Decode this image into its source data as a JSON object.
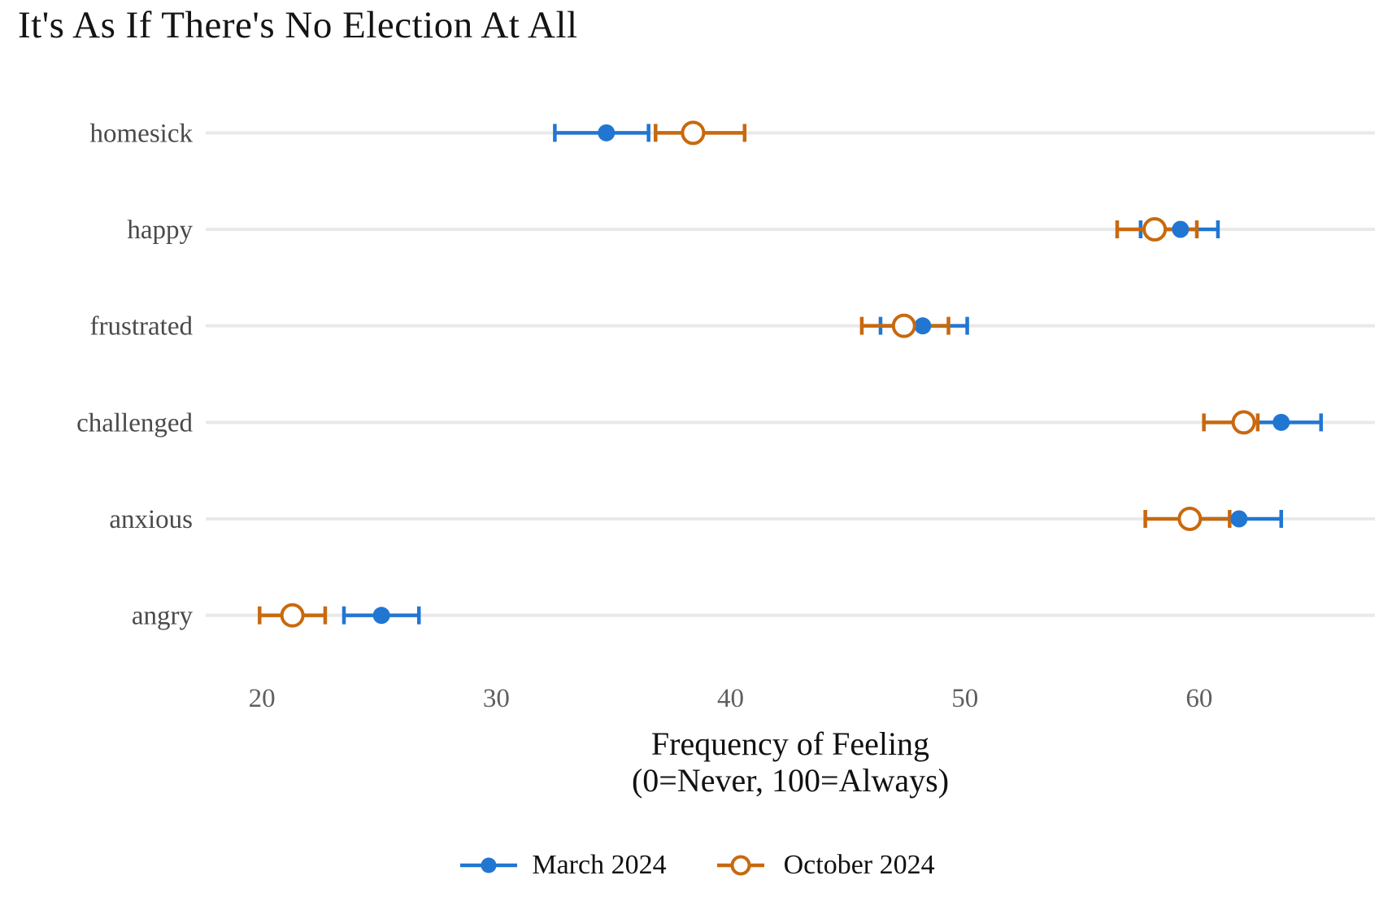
{
  "chart_data": {
    "type": "scatter",
    "variant": "horizontal-dot-plot-with-error-bars",
    "title": "It's As If There's No Election At All",
    "categories": [
      "homesick",
      "happy",
      "frustrated",
      "challenged",
      "anxious",
      "angry"
    ],
    "series": [
      {
        "name": "March 2024",
        "color": "#2176d2",
        "marker": "filled-circle",
        "values": [
          34.7,
          59.2,
          48.2,
          63.5,
          61.7,
          25.1
        ],
        "ci_low": [
          32.5,
          57.5,
          46.4,
          61.8,
          59.8,
          23.5
        ],
        "ci_high": [
          36.5,
          60.8,
          50.1,
          65.2,
          63.5,
          26.7
        ]
      },
      {
        "name": "October 2024",
        "color": "#c8690e",
        "marker": "open-circle",
        "values": [
          38.4,
          58.1,
          47.4,
          61.9,
          59.6,
          21.3
        ],
        "ci_low": [
          36.8,
          56.5,
          45.6,
          60.2,
          57.7,
          19.9
        ],
        "ci_high": [
          40.6,
          59.9,
          49.3,
          62.5,
          61.3,
          22.7
        ]
      }
    ],
    "xlabel_line1": "Frequency of Feeling",
    "xlabel_line2": "(0=Never, 100=Always)",
    "xticks": [
      20,
      30,
      40,
      50,
      60
    ],
    "xlim": [
      17.6,
      67.5
    ],
    "grid": "horizontal-only",
    "gridline_color": "#e9e9e9",
    "legend_position": "bottom-center"
  }
}
